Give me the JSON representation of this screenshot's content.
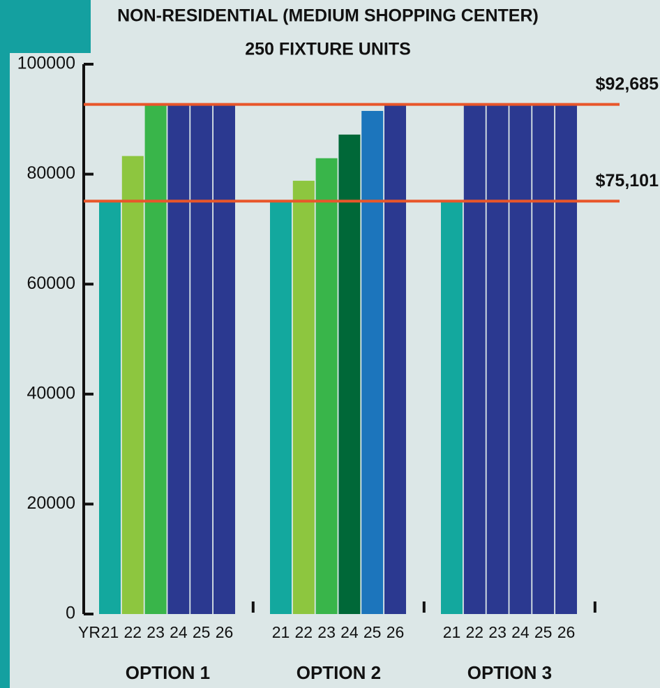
{
  "chart_data": {
    "type": "bar",
    "title": "NON-RESIDENTIAL (MEDIUM SHOPPING CENTER)",
    "subtitle": "250 FIXTURE UNITS",
    "x_label": "YR",
    "ylim": [
      0,
      100000
    ],
    "yticks": [
      0,
      20000,
      40000,
      60000,
      80000,
      100000
    ],
    "reference_lines": [
      {
        "value": 92685,
        "label": "$92,685",
        "color": "#e8562a"
      },
      {
        "value": 75101,
        "label": "$75,101",
        "color": "#e8562a"
      }
    ],
    "groups": [
      {
        "name": "OPTION 1",
        "categories": [
          "21",
          "22",
          "23",
          "24",
          "25",
          "26"
        ],
        "values": [
          75101,
          83300,
          92685,
          92685,
          92685,
          92685
        ],
        "colors": [
          "#13a89e",
          "#8dc63f",
          "#39b54a",
          "#2b3990",
          "#2b3990",
          "#2b3990"
        ]
      },
      {
        "name": "OPTION 2",
        "categories": [
          "21",
          "22",
          "23",
          "24",
          "25",
          "26"
        ],
        "values": [
          75101,
          78800,
          82900,
          87200,
          91500,
          92685
        ],
        "colors": [
          "#13a89e",
          "#8dc63f",
          "#39b54a",
          "#006838",
          "#1c75bc",
          "#2b3990"
        ]
      },
      {
        "name": "OPTION 3",
        "categories": [
          "21",
          "22",
          "23",
          "24",
          "25",
          "26"
        ],
        "values": [
          75101,
          92685,
          92685,
          92685,
          92685,
          92685
        ],
        "colors": [
          "#13a89e",
          "#2b3990",
          "#2b3990",
          "#2b3990",
          "#2b3990",
          "#2b3990"
        ]
      }
    ]
  }
}
